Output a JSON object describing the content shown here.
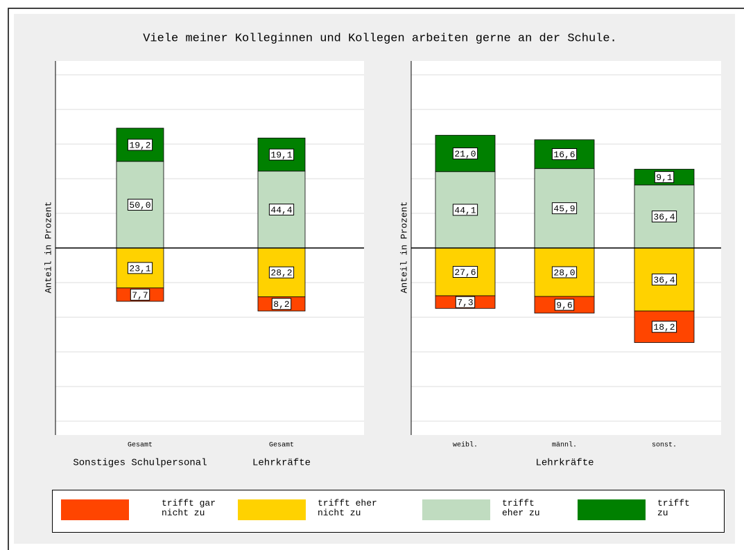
{
  "title": "Viele meiner Kolleginnen und Kollegen arbeiten gerne an der Schule.",
  "chart_data": [
    {
      "type": "bar",
      "stacked": true,
      "ylabel": "Anteil in Prozent",
      "categories": [
        "Gesamt",
        "Gesamt"
      ],
      "groups": [
        "Sonstiges Schulpersonal",
        "Lehrkräfte"
      ],
      "ylim": [
        -108,
        108
      ],
      "yticks": [
        -100,
        -80,
        -60,
        -40,
        -20,
        0,
        20,
        40,
        60,
        80,
        100
      ],
      "grid": true,
      "series": [
        {
          "name": "trifft gar nicht zu",
          "color": "#ff4500",
          "values": [
            -7.7,
            -8.2
          ],
          "value_labels": [
            "7,7",
            "8,2"
          ]
        },
        {
          "name": "trifft eher nicht zu",
          "color": "#ffd200",
          "values": [
            -23.1,
            -28.2
          ],
          "value_labels": [
            "23,1",
            "28,2"
          ]
        },
        {
          "name": "trifft eher zu",
          "color": "#c0dcc0",
          "values": [
            50.0,
            44.4
          ],
          "value_labels": [
            "50,0",
            "44,4"
          ]
        },
        {
          "name": "trifft zu",
          "color": "#008000",
          "values": [
            19.2,
            19.1
          ],
          "value_labels": [
            "19,2",
            "19,1"
          ]
        }
      ]
    },
    {
      "type": "bar",
      "stacked": true,
      "ylabel": "Anteil in Prozent",
      "categories": [
        "weibl.",
        "männl.",
        "sonst."
      ],
      "groups": [
        "Lehrkräfte"
      ],
      "ylim": [
        -108,
        108
      ],
      "yticks": [
        -100,
        -80,
        -60,
        -40,
        -20,
        0,
        20,
        40,
        60,
        80,
        100
      ],
      "grid": true,
      "series": [
        {
          "name": "trifft gar nicht zu",
          "color": "#ff4500",
          "values": [
            -7.3,
            -9.6,
            -18.2
          ],
          "value_labels": [
            "7,3",
            "9,6",
            "18,2"
          ]
        },
        {
          "name": "trifft eher nicht zu",
          "color": "#ffd200",
          "values": [
            -27.6,
            -28.0,
            -36.4
          ],
          "value_labels": [
            "27,6",
            "28,0",
            "36,4"
          ]
        },
        {
          "name": "trifft eher zu",
          "color": "#c0dcc0",
          "values": [
            44.1,
            45.9,
            36.4
          ],
          "value_labels": [
            "44,1",
            "45,9",
            "36,4"
          ]
        },
        {
          "name": "trifft zu",
          "color": "#008000",
          "values": [
            21.0,
            16.6,
            9.1
          ],
          "value_labels": [
            "21,0",
            "16,6",
            "9,1"
          ]
        }
      ]
    }
  ]
}
